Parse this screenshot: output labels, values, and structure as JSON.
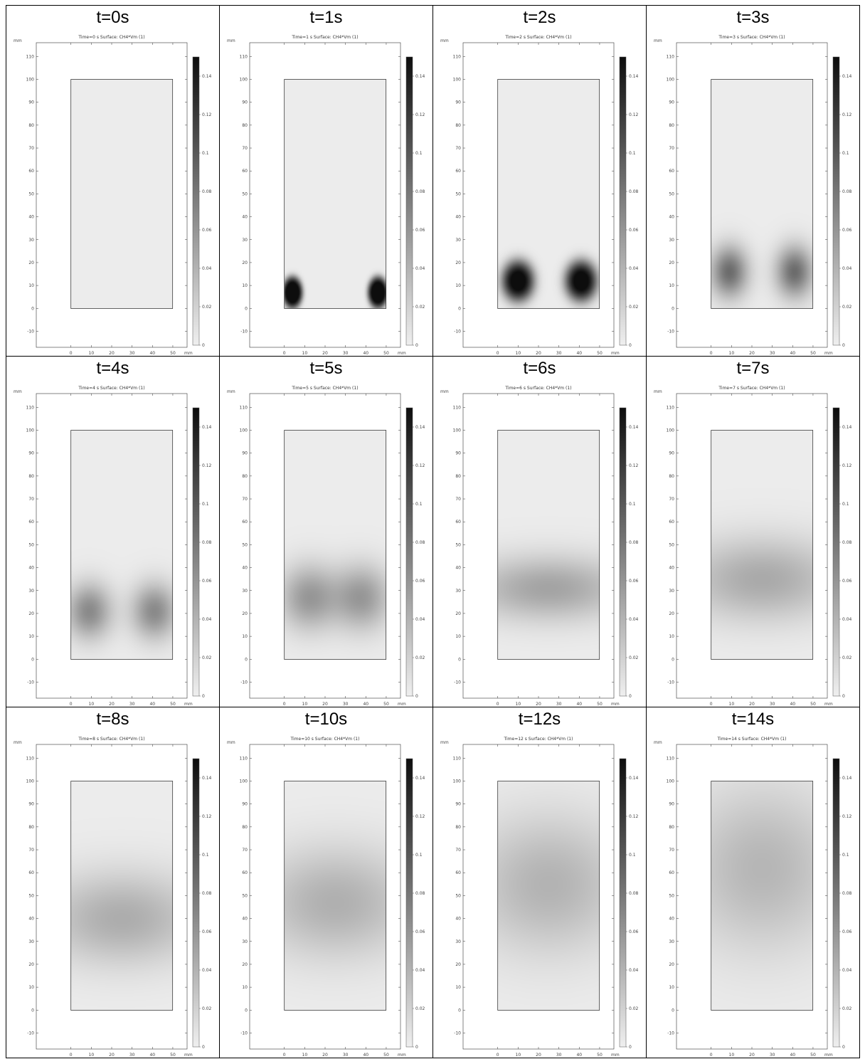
{
  "colors": {
    "low": "#efefef",
    "high": "#0d0d0d",
    "border": "#000000",
    "axis": "#333333"
  },
  "chart_data": [
    {
      "type": "heatmap",
      "label": "t=0s",
      "title": "Time=0 s   Surface: CH4*Vm (1)",
      "xlabel": "mm",
      "ylabel": "mm",
      "x_ticks": [
        0,
        10,
        20,
        30,
        40,
        50
      ],
      "y_ticks": [
        -10,
        0,
        10,
        20,
        30,
        40,
        50,
        60,
        70,
        80,
        90,
        100,
        110
      ],
      "xlim": [
        -17,
        57
      ],
      "ylim": [
        -17,
        116
      ],
      "domain": {
        "x": [
          0,
          50
        ],
        "y": [
          0,
          100
        ]
      },
      "colorbar": {
        "ticks": [
          0,
          0.02,
          0.04,
          0.06,
          0.08,
          0.1,
          0.12,
          0.14
        ],
        "tick_labels": [
          "0",
          "0.02",
          "0.04",
          "0.06",
          "0.08",
          "0.1",
          "0.12",
          "0.14"
        ],
        "range": [
          0,
          0.15
        ]
      },
      "field": {
        "background": 0.002,
        "blobs": []
      }
    },
    {
      "type": "heatmap",
      "label": "t=1s",
      "title": "Time=1 s   Surface: CH4*Vm (1)",
      "xlabel": "mm",
      "ylabel": "mm",
      "x_ticks": [
        0,
        10,
        20,
        30,
        40,
        50
      ],
      "y_ticks": [
        -10,
        0,
        10,
        20,
        30,
        40,
        50,
        60,
        70,
        80,
        90,
        100,
        110
      ],
      "xlim": [
        -17,
        57
      ],
      "ylim": [
        -17,
        116
      ],
      "domain": {
        "x": [
          0,
          50
        ],
        "y": [
          0,
          100
        ]
      },
      "colorbar": {
        "ticks": [
          0,
          0.02,
          0.04,
          0.06,
          0.08,
          0.1,
          0.12,
          0.14
        ],
        "tick_labels": [
          "0",
          "0.02",
          "0.04",
          "0.06",
          "0.08",
          "0.1",
          "0.12",
          "0.14"
        ],
        "range": [
          0,
          0.15
        ]
      },
      "field": {
        "background": 0.002,
        "blobs": [
          {
            "x": 4,
            "y": 7,
            "sx": 5,
            "sy": 7,
            "v": 0.17,
            "p": 4
          },
          {
            "x": 46,
            "y": 7,
            "sx": 5,
            "sy": 7,
            "v": 0.17,
            "p": 4
          }
        ]
      }
    },
    {
      "type": "heatmap",
      "label": "t=2s",
      "title": "Time=2 s   Surface: CH4*Vm (1)",
      "xlabel": "mm",
      "ylabel": "mm",
      "x_ticks": [
        0,
        10,
        20,
        30,
        40,
        50
      ],
      "y_ticks": [
        -10,
        0,
        10,
        20,
        30,
        40,
        50,
        60,
        70,
        80,
        90,
        100,
        110
      ],
      "xlim": [
        -17,
        57
      ],
      "ylim": [
        -17,
        116
      ],
      "domain": {
        "x": [
          0,
          50
        ],
        "y": [
          0,
          100
        ]
      },
      "colorbar": {
        "ticks": [
          0,
          0.02,
          0.04,
          0.06,
          0.08,
          0.1,
          0.12,
          0.14
        ],
        "tick_labels": [
          "0",
          "0.02",
          "0.04",
          "0.06",
          "0.08",
          "0.1",
          "0.12",
          "0.14"
        ],
        "range": [
          0,
          0.15
        ]
      },
      "field": {
        "background": 0.002,
        "blobs": [
          {
            "x": 10,
            "y": 12,
            "sx": 8,
            "sy": 9,
            "v": 0.16,
            "p": 3
          },
          {
            "x": 41,
            "y": 12,
            "sx": 8,
            "sy": 9,
            "v": 0.16,
            "p": 3
          }
        ]
      }
    },
    {
      "type": "heatmap",
      "label": "t=3s",
      "title": "Time=3 s   Surface: CH4*Vm (1)",
      "xlabel": "mm",
      "ylabel": "mm",
      "x_ticks": [
        0,
        10,
        20,
        30,
        40,
        50
      ],
      "y_ticks": [
        -10,
        0,
        10,
        20,
        30,
        40,
        50,
        60,
        70,
        80,
        90,
        100,
        110
      ],
      "xlim": [
        -17,
        57
      ],
      "ylim": [
        -17,
        116
      ],
      "domain": {
        "x": [
          0,
          50
        ],
        "y": [
          0,
          100
        ]
      },
      "colorbar": {
        "ticks": [
          0,
          0.02,
          0.04,
          0.06,
          0.08,
          0.1,
          0.12,
          0.14
        ],
        "tick_labels": [
          "0",
          "0.02",
          "0.04",
          "0.06",
          "0.08",
          "0.1",
          "0.12",
          "0.14"
        ],
        "range": [
          0,
          0.15
        ]
      },
      "field": {
        "background": 0.002,
        "blobs": [
          {
            "x": 9,
            "y": 16,
            "sx": 9,
            "sy": 11,
            "v": 0.085,
            "p": 2
          },
          {
            "x": 41,
            "y": 16,
            "sx": 9,
            "sy": 11,
            "v": 0.085,
            "p": 2
          }
        ]
      }
    },
    {
      "type": "heatmap",
      "label": "t=4s",
      "title": "Time=4 s   Surface: CH4*Vm (1)",
      "xlabel": "mm",
      "ylabel": "mm",
      "x_ticks": [
        0,
        10,
        20,
        30,
        40,
        50
      ],
      "y_ticks": [
        -10,
        0,
        10,
        20,
        30,
        40,
        50,
        60,
        70,
        80,
        90,
        100,
        110
      ],
      "xlim": [
        -17,
        57
      ],
      "ylim": [
        -17,
        116
      ],
      "domain": {
        "x": [
          0,
          50
        ],
        "y": [
          0,
          100
        ]
      },
      "colorbar": {
        "ticks": [
          0,
          0.02,
          0.04,
          0.06,
          0.08,
          0.1,
          0.12,
          0.14
        ],
        "tick_labels": [
          "0",
          "0.02",
          "0.04",
          "0.06",
          "0.08",
          "0.1",
          "0.12",
          "0.14"
        ],
        "range": [
          0,
          0.15
        ]
      },
      "field": {
        "background": 0.002,
        "blobs": [
          {
            "x": 9,
            "y": 21,
            "sx": 11,
            "sy": 12,
            "v": 0.065,
            "p": 2
          },
          {
            "x": 41,
            "y": 21,
            "sx": 11,
            "sy": 12,
            "v": 0.065,
            "p": 2
          }
        ]
      }
    },
    {
      "type": "heatmap",
      "label": "t=5s",
      "title": "Time=5 s   Surface: CH4*Vm (1)",
      "xlabel": "mm",
      "ylabel": "mm",
      "x_ticks": [
        0,
        10,
        20,
        30,
        40,
        50
      ],
      "y_ticks": [
        -10,
        0,
        10,
        20,
        30,
        40,
        50,
        60,
        70,
        80,
        90,
        100,
        110
      ],
      "xlim": [
        -17,
        57
      ],
      "ylim": [
        -17,
        116
      ],
      "domain": {
        "x": [
          0,
          50
        ],
        "y": [
          0,
          100
        ]
      },
      "colorbar": {
        "ticks": [
          0,
          0.02,
          0.04,
          0.06,
          0.08,
          0.1,
          0.12,
          0.14
        ],
        "tick_labels": [
          "0",
          "0.02",
          "0.04",
          "0.06",
          "0.08",
          "0.1",
          "0.12",
          "0.14"
        ],
        "range": [
          0,
          0.15
        ]
      },
      "field": {
        "background": 0.002,
        "blobs": [
          {
            "x": 12,
            "y": 27,
            "sx": 14,
            "sy": 14,
            "v": 0.055,
            "p": 2
          },
          {
            "x": 38,
            "y": 27,
            "sx": 14,
            "sy": 14,
            "v": 0.055,
            "p": 2
          }
        ]
      }
    },
    {
      "type": "heatmap",
      "label": "t=6s",
      "title": "Time=6 s   Surface: CH4*Vm (1)",
      "xlabel": "mm",
      "ylabel": "mm",
      "x_ticks": [
        0,
        10,
        20,
        30,
        40,
        50
      ],
      "y_ticks": [
        -10,
        0,
        10,
        20,
        30,
        40,
        50,
        60,
        70,
        80,
        90,
        100,
        110
      ],
      "xlim": [
        -17,
        57
      ],
      "ylim": [
        -17,
        116
      ],
      "domain": {
        "x": [
          0,
          50
        ],
        "y": [
          0,
          100
        ]
      },
      "colorbar": {
        "ticks": [
          0,
          0.02,
          0.04,
          0.06,
          0.08,
          0.1,
          0.12,
          0.14
        ],
        "tick_labels": [
          "0",
          "0.02",
          "0.04",
          "0.06",
          "0.08",
          "0.1",
          "0.12",
          "0.14"
        ],
        "range": [
          0,
          0.15
        ]
      },
      "field": {
        "background": 0.002,
        "blobs": [
          {
            "x": 25,
            "y": 31,
            "sx": 40,
            "sy": 14,
            "v": 0.048,
            "p": 2
          }
        ]
      }
    },
    {
      "type": "heatmap",
      "label": "t=7s",
      "title": "Time=7 s   Surface: CH4*Vm (1)",
      "xlabel": "mm",
      "ylabel": "mm",
      "x_ticks": [
        0,
        10,
        20,
        30,
        40,
        50
      ],
      "y_ticks": [
        -10,
        0,
        10,
        20,
        30,
        40,
        50,
        60,
        70,
        80,
        90,
        100,
        110
      ],
      "xlim": [
        -17,
        57
      ],
      "ylim": [
        -17,
        116
      ],
      "domain": {
        "x": [
          0,
          50
        ],
        "y": [
          0,
          100
        ]
      },
      "colorbar": {
        "ticks": [
          0,
          0.02,
          0.04,
          0.06,
          0.08,
          0.1,
          0.12,
          0.14
        ],
        "tick_labels": [
          "0",
          "0.02",
          "0.04",
          "0.06",
          "0.08",
          "0.1",
          "0.12",
          "0.14"
        ],
        "range": [
          0,
          0.15
        ]
      },
      "field": {
        "background": 0.002,
        "blobs": [
          {
            "x": 25,
            "y": 35,
            "sx": 40,
            "sy": 18,
            "v": 0.044,
            "p": 2
          }
        ]
      }
    },
    {
      "type": "heatmap",
      "label": "t=8s",
      "title": "Time=8 s   Surface: CH4*Vm (1)",
      "xlabel": "mm",
      "ylabel": "mm",
      "x_ticks": [
        0,
        10,
        20,
        30,
        40,
        50
      ],
      "y_ticks": [
        -10,
        0,
        10,
        20,
        30,
        40,
        50,
        60,
        70,
        80,
        90,
        100,
        110
      ],
      "xlim": [
        -17,
        57
      ],
      "ylim": [
        -17,
        116
      ],
      "domain": {
        "x": [
          0,
          50
        ],
        "y": [
          0,
          100
        ]
      },
      "colorbar": {
        "ticks": [
          0,
          0.02,
          0.04,
          0.06,
          0.08,
          0.1,
          0.12,
          0.14
        ],
        "tick_labels": [
          "0",
          "0.02",
          "0.04",
          "0.06",
          "0.08",
          "0.1",
          "0.12",
          "0.14"
        ],
        "range": [
          0,
          0.15
        ]
      },
      "field": {
        "background": 0.002,
        "blobs": [
          {
            "x": 25,
            "y": 40,
            "sx": 40,
            "sy": 20,
            "v": 0.042,
            "p": 2
          }
        ]
      }
    },
    {
      "type": "heatmap",
      "label": "t=10s",
      "title": "Time=10 s   Surface: CH4*Vm (1)",
      "xlabel": "mm",
      "ylabel": "mm",
      "x_ticks": [
        0,
        10,
        20,
        30,
        40,
        50
      ],
      "y_ticks": [
        -10,
        0,
        10,
        20,
        30,
        40,
        50,
        60,
        70,
        80,
        90,
        100,
        110
      ],
      "xlim": [
        -17,
        57
      ],
      "ylim": [
        -17,
        116
      ],
      "domain": {
        "x": [
          0,
          50
        ],
        "y": [
          0,
          100
        ]
      },
      "colorbar": {
        "ticks": [
          0,
          0.02,
          0.04,
          0.06,
          0.08,
          0.1,
          0.12,
          0.14
        ],
        "tick_labels": [
          "0",
          "0.02",
          "0.04",
          "0.06",
          "0.08",
          "0.1",
          "0.12",
          "0.14"
        ],
        "range": [
          0,
          0.15
        ]
      },
      "field": {
        "background": 0.002,
        "blobs": [
          {
            "x": 25,
            "y": 47,
            "sx": 40,
            "sy": 24,
            "v": 0.04,
            "p": 2
          }
        ]
      }
    },
    {
      "type": "heatmap",
      "label": "t=12s",
      "title": "Time=12 s   Surface: CH4*Vm (1)",
      "xlabel": "mm",
      "ylabel": "mm",
      "x_ticks": [
        0,
        10,
        20,
        30,
        40,
        50
      ],
      "y_ticks": [
        -10,
        0,
        10,
        20,
        30,
        40,
        50,
        60,
        70,
        80,
        90,
        100,
        110
      ],
      "xlim": [
        -17,
        57
      ],
      "ylim": [
        -17,
        116
      ],
      "domain": {
        "x": [
          0,
          50
        ],
        "y": [
          0,
          100
        ]
      },
      "colorbar": {
        "ticks": [
          0,
          0.02,
          0.04,
          0.06,
          0.08,
          0.1,
          0.12,
          0.14
        ],
        "tick_labels": [
          "0",
          "0.02",
          "0.04",
          "0.06",
          "0.08",
          "0.1",
          "0.12",
          "0.14"
        ],
        "range": [
          0,
          0.15
        ]
      },
      "field": {
        "background": 0.002,
        "blobs": [
          {
            "x": 25,
            "y": 55,
            "sx": 40,
            "sy": 30,
            "v": 0.038,
            "p": 2
          }
        ]
      }
    },
    {
      "type": "heatmap",
      "label": "t=14s",
      "title": "Time=14 s   Surface: CH4*Vm (1)",
      "xlabel": "mm",
      "ylabel": "mm",
      "x_ticks": [
        0,
        10,
        20,
        30,
        40,
        50
      ],
      "y_ticks": [
        -10,
        0,
        10,
        20,
        30,
        40,
        50,
        60,
        70,
        80,
        90,
        100,
        110
      ],
      "xlim": [
        -17,
        57
      ],
      "ylim": [
        -17,
        116
      ],
      "domain": {
        "x": [
          0,
          50
        ],
        "y": [
          0,
          100
        ]
      },
      "colorbar": {
        "ticks": [
          0,
          0.02,
          0.04,
          0.06,
          0.08,
          0.1,
          0.12,
          0.14
        ],
        "tick_labels": [
          "0",
          "0.02",
          "0.04",
          "0.06",
          "0.08",
          "0.1",
          "0.12",
          "0.14"
        ],
        "range": [
          0,
          0.15
        ]
      },
      "field": {
        "background": 0.002,
        "blobs": [
          {
            "x": 25,
            "y": 62,
            "sx": 40,
            "sy": 36,
            "v": 0.036,
            "p": 2
          }
        ]
      }
    }
  ]
}
